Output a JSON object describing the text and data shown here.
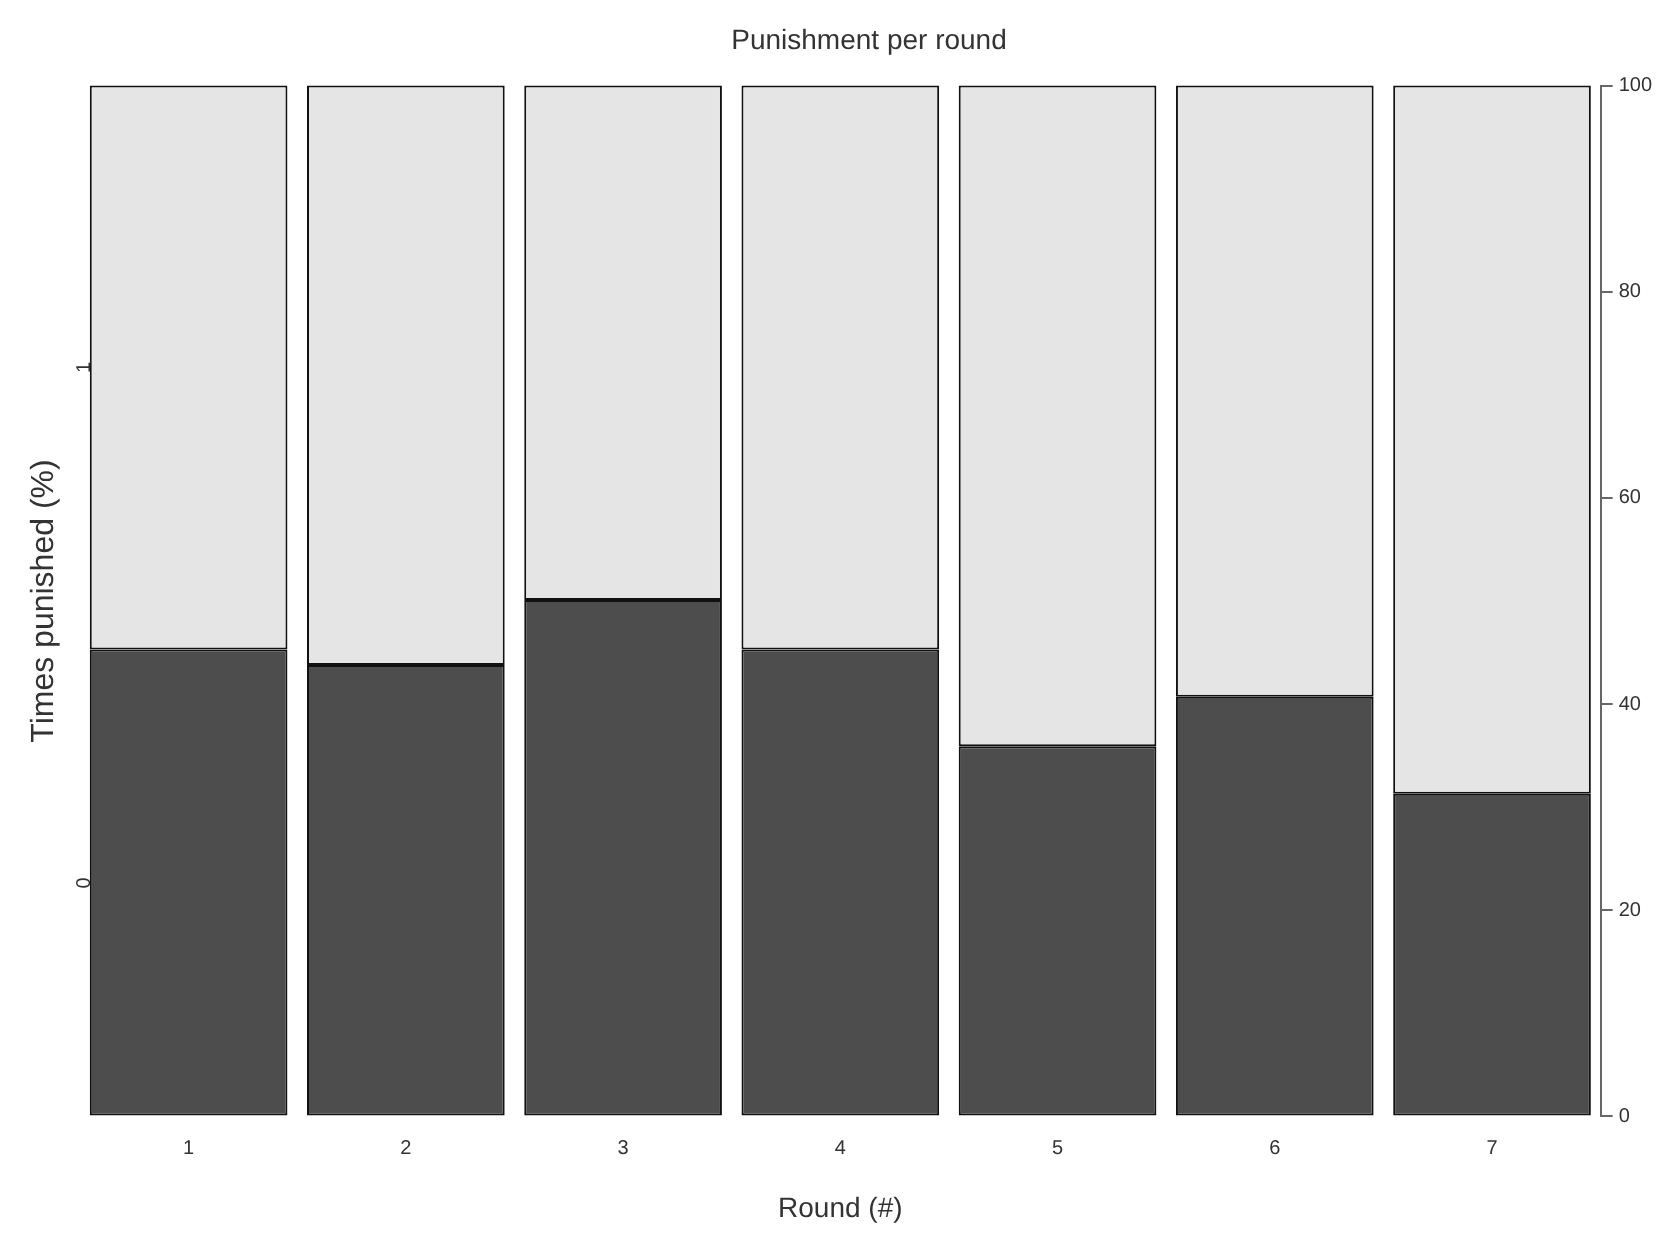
{
  "chart_data": {
    "type": "bar",
    "title": "Punishment per round",
    "xlabel": "Round (#)",
    "ylabel": "Times punished (%)",
    "categories": [
      "1",
      "2",
      "3",
      "4",
      "5",
      "6",
      "7"
    ],
    "stacked": true,
    "ylim": [
      0,
      100
    ],
    "yticks": [
      0,
      20,
      40,
      60,
      80,
      100
    ],
    "series": [
      {
        "name": "0",
        "color": "#4d4d4d",
        "values": [
          45.3,
          43.8,
          50.1,
          45.3,
          35.9,
          40.7,
          31.3
        ]
      },
      {
        "name": "1",
        "color": "#e5e5e5",
        "values": [
          54.7,
          56.2,
          49.9,
          54.7,
          64.1,
          59.3,
          68.7
        ]
      }
    ]
  }
}
